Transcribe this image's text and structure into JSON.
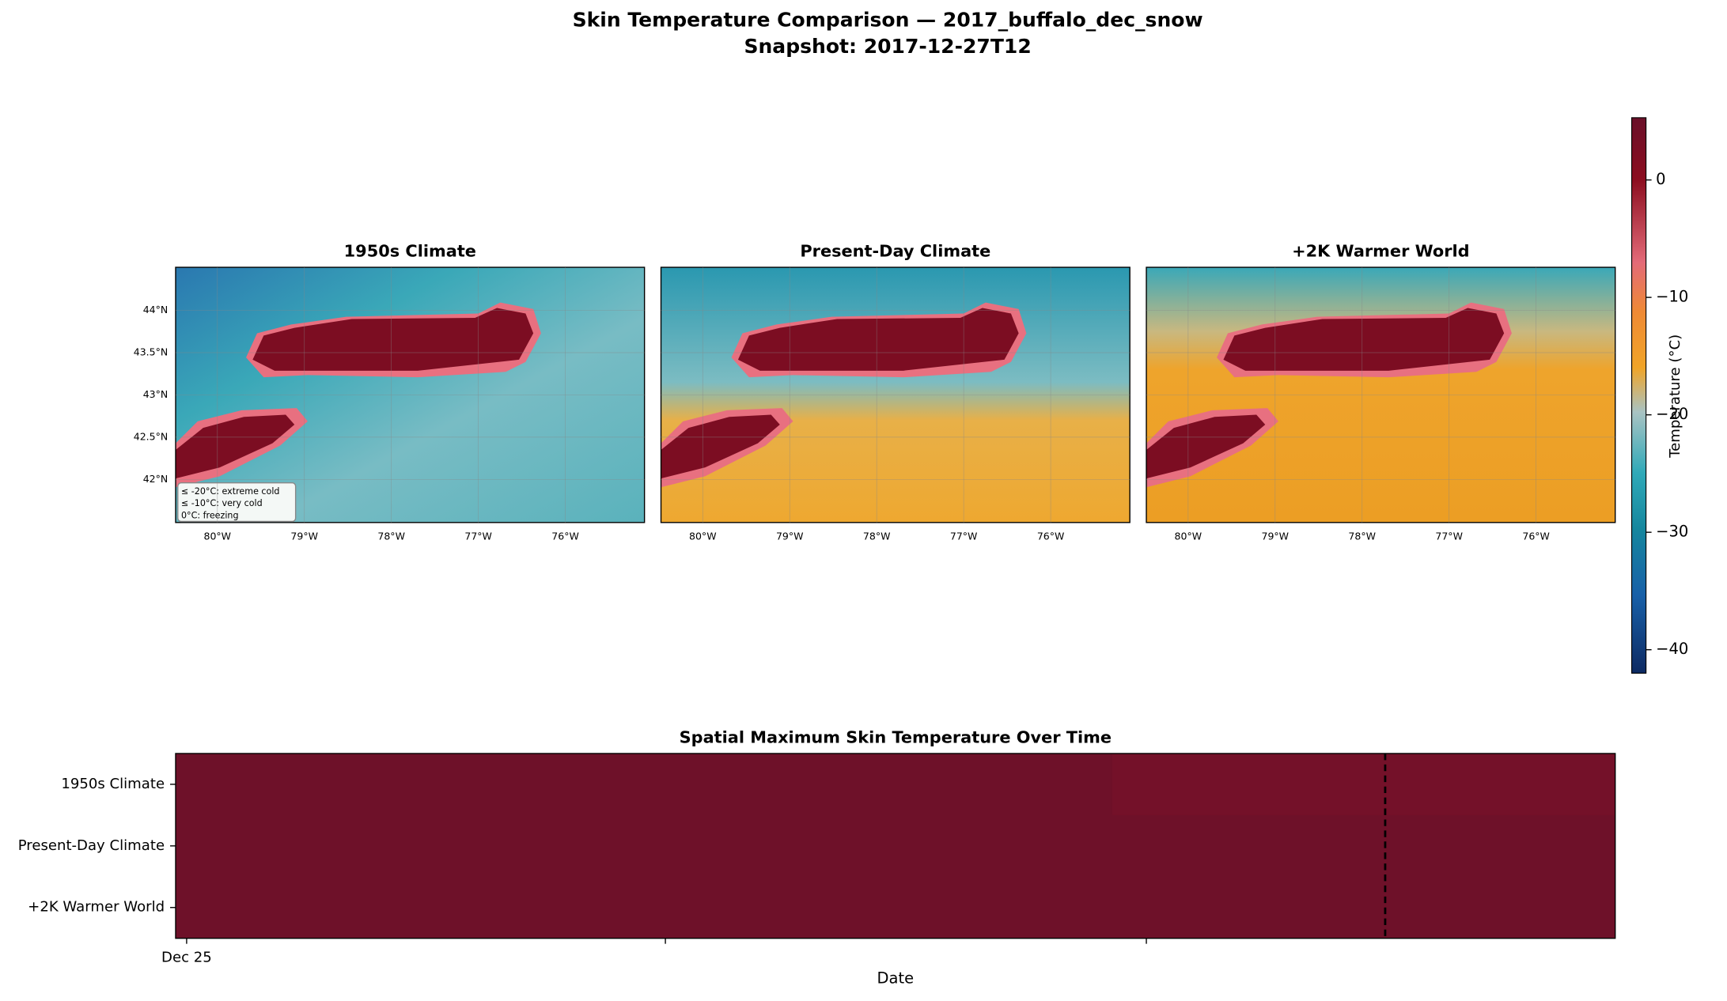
{
  "title": "Skin Temperature Comparison — 2017_buffalo_dec_snow",
  "subtitle": "Snapshot: 2017-12-27T12",
  "chart_data": [
    {
      "type": "heatmap",
      "panels": [
        {
          "title": "1950s Climate"
        },
        {
          "title": "Present-Day Climate"
        },
        {
          "title": "+2K Warmer World"
        }
      ],
      "xlim": [
        -80.48,
        -75.09
      ],
      "xticks": [
        {
          "value": -80,
          "label": "80°W"
        },
        {
          "value": -79,
          "label": "79°W"
        },
        {
          "value": -78,
          "label": "78°W"
        },
        {
          "value": -77,
          "label": "77°W"
        },
        {
          "value": -76,
          "label": "76°W"
        }
      ],
      "ylim": [
        41.49,
        44.51
      ],
      "yticks": [
        {
          "value": 44,
          "label": "44°N"
        },
        {
          "value": 43.5,
          "label": "43.5°N"
        },
        {
          "value": 43,
          "label": "43°N"
        },
        {
          "value": 42.5,
          "label": "42.5°N"
        },
        {
          "value": 42,
          "label": "42°N"
        }
      ],
      "legend": [
        "≤ -20°C: extreme cold",
        "≤ -10°C: very cold",
        "0°C: freezing"
      ],
      "colorbar_label": "Temperature (°C)",
      "clim": [
        -42,
        5.3
      ],
      "cticks": [
        {
          "value": 0,
          "label": "0"
        },
        {
          "value": -10,
          "label": "−10"
        },
        {
          "value": -20,
          "label": "−20"
        },
        {
          "value": -30,
          "label": "−30"
        },
        {
          "value": -40,
          "label": "−40"
        }
      ]
    },
    {
      "type": "heatmap",
      "title": "Spatial Maximum Skin Temperature Over Time",
      "rows": [
        "1950s Climate",
        "Present-Day Climate",
        "+2K Warmer World"
      ],
      "xticks": [
        "Dec 25"
      ],
      "xlabel": "Date"
    }
  ]
}
